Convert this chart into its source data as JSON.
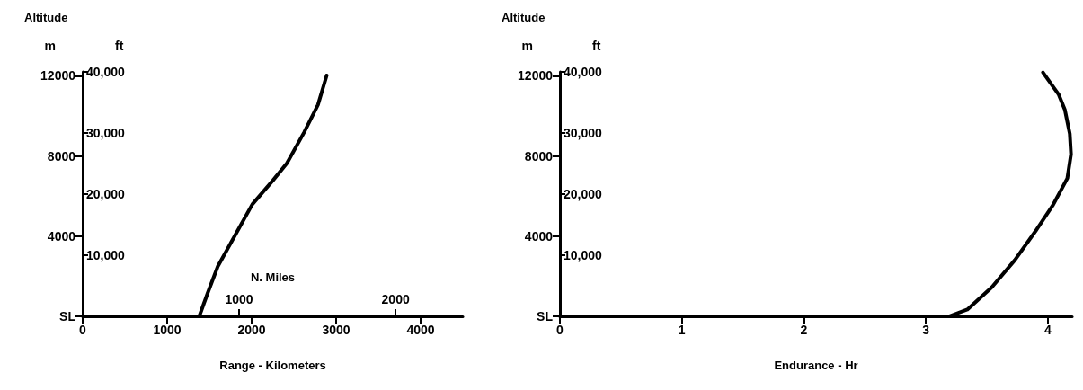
{
  "chart_data": [
    {
      "type": "line",
      "title": "Altitude",
      "ylabel": "m",
      "y2label": "ft",
      "xlabel": "Range - Kilometers",
      "x2label": "N. Miles",
      "xlim": [
        0,
        4500
      ],
      "xticks": [
        0,
        1000,
        2000,
        3000,
        4000
      ],
      "x2lim": [
        0,
        2430
      ],
      "x2ticks": [
        1000,
        2000
      ],
      "ylim": [
        0,
        12200
      ],
      "yticks": [
        {
          "value": 0,
          "label": "SL"
        },
        4000,
        8000,
        12000
      ],
      "y2lim": [
        0,
        40026
      ],
      "y2ticks": [
        {
          "value": 10000,
          "label": "10,000"
        },
        {
          "value": 20000,
          "label": "20,000"
        },
        {
          "value": 30000,
          "label": "30,000"
        },
        {
          "value": 40000,
          "label": "40,000"
        }
      ],
      "series": [
        {
          "color": "#000000",
          "x": [
            1380,
            1476,
            1599,
            1803,
            2008,
            2253,
            2417,
            2622,
            2785,
            2888
          ],
          "values": [
            0,
            1120,
            2490,
            4040,
            5590,
            6790,
            7640,
            9190,
            10560,
            12020
          ]
        }
      ]
    },
    {
      "type": "line",
      "title": "Altitude",
      "ylabel": "m",
      "y2label": "ft",
      "xlabel": "Endurance - Hr",
      "xlim": [
        0,
        4.2
      ],
      "xticks": [
        0,
        1,
        2,
        3,
        4
      ],
      "ylim": [
        0,
        12200
      ],
      "yticks": [
        {
          "value": 0,
          "label": "SL"
        },
        4000,
        8000,
        12000
      ],
      "y2lim": [
        0,
        40026
      ],
      "y2ticks": [
        {
          "value": 10000,
          "label": "10,000"
        },
        {
          "value": 20000,
          "label": "20,000"
        },
        {
          "value": 30000,
          "label": "30,000"
        },
        {
          "value": 40000,
          "label": "40,000"
        }
      ],
      "series": [
        {
          "color": "#000000",
          "x": [
            3.19,
            3.34,
            3.54,
            3.73,
            3.9,
            4.04,
            4.16,
            4.19,
            4.18,
            4.14,
            4.09,
            3.96
          ],
          "values": [
            0,
            340,
            1450,
            2810,
            4260,
            5530,
            6890,
            8090,
            9110,
            10300,
            11060,
            12170
          ]
        }
      ]
    }
  ]
}
